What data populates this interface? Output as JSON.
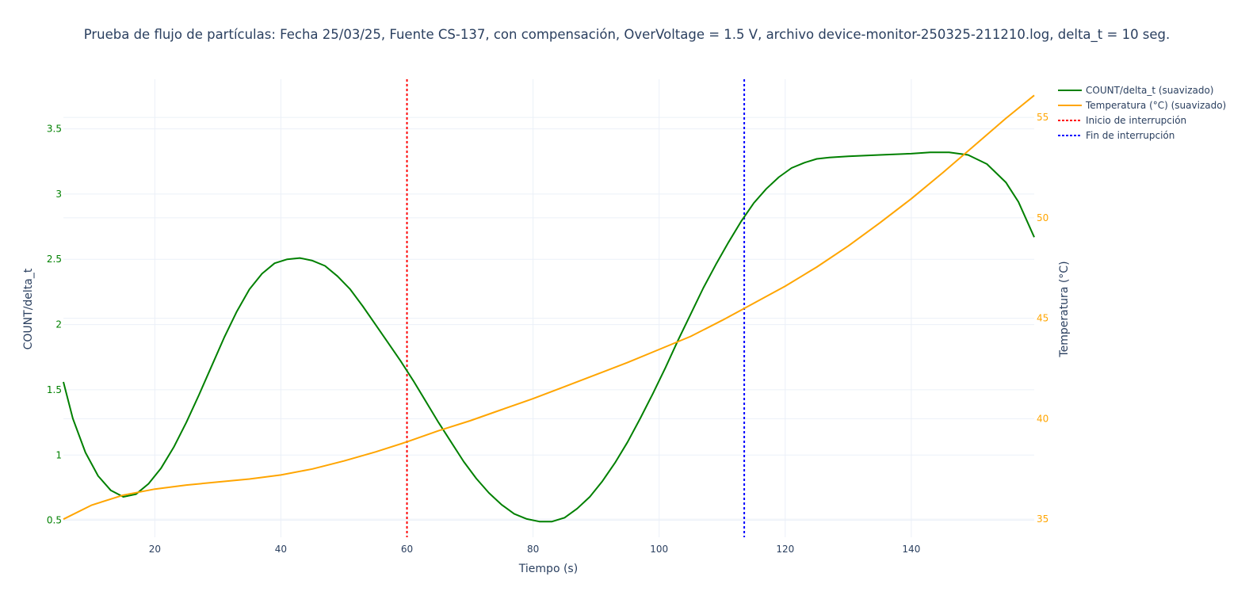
{
  "chart_data": {
    "type": "line",
    "title": "Prueba de flujo de partículas: Fecha 25/03/25, Fuente CS-137, con compensación, OverVoltage = 1.5 V, archivo device-monitor-250325-211210.log, delta_t = 10 seg.",
    "xlabel": "Tiempo (s)",
    "ylabel": "COUNT/delta_t",
    "y2label": "Temperatura (°C)",
    "xlim": [
      5.5,
      159.5
    ],
    "ylim": [
      0.37,
      3.88
    ],
    "y2lim": [
      34.1,
      56.9
    ],
    "x_ticks": [
      20,
      40,
      60,
      80,
      100,
      120,
      140
    ],
    "y_ticks": [
      0.5,
      1,
      1.5,
      2,
      2.5,
      3,
      3.5
    ],
    "y_tick_labels": [
      "0.5",
      "1",
      "1.5",
      "2",
      "2.5",
      "3",
      "3.5"
    ],
    "y2_ticks": [
      35,
      40,
      45,
      50,
      55
    ],
    "grid": true,
    "legend_position": "top-right",
    "colors": {
      "count": "#008000",
      "temp": "#FFA500",
      "start": "#FF0000",
      "end": "#0000FF",
      "grid": "#EBF0F8",
      "text": "#2a3f5f"
    },
    "series": [
      {
        "name": "COUNT/delta_t (suavizado)",
        "axis": "y",
        "x": [
          5.5,
          7,
          9,
          11,
          13,
          15,
          17,
          19,
          21,
          23,
          25,
          27,
          29,
          31,
          33,
          35,
          37,
          39,
          41,
          43,
          45,
          47,
          49,
          51,
          53,
          55,
          57,
          59,
          61,
          63,
          65,
          67,
          69,
          71,
          73,
          75,
          77,
          79,
          81,
          83,
          85,
          87,
          89,
          91,
          93,
          95,
          97,
          99,
          101,
          103,
          105,
          107,
          109,
          111,
          113,
          115,
          117,
          119,
          121,
          123,
          125,
          127,
          130,
          135,
          140,
          143,
          146,
          149,
          152,
          155,
          157,
          159.5
        ],
        "values": [
          1.56,
          1.28,
          1.02,
          0.84,
          0.73,
          0.68,
          0.7,
          0.78,
          0.9,
          1.06,
          1.25,
          1.46,
          1.68,
          1.9,
          2.1,
          2.27,
          2.39,
          2.47,
          2.5,
          2.51,
          2.49,
          2.45,
          2.37,
          2.27,
          2.14,
          2.0,
          1.86,
          1.72,
          1.57,
          1.41,
          1.25,
          1.1,
          0.95,
          0.82,
          0.71,
          0.62,
          0.55,
          0.51,
          0.49,
          0.49,
          0.52,
          0.59,
          0.68,
          0.8,
          0.94,
          1.1,
          1.28,
          1.47,
          1.67,
          1.88,
          2.08,
          2.28,
          2.46,
          2.63,
          2.79,
          2.93,
          3.04,
          3.13,
          3.2,
          3.24,
          3.27,
          3.28,
          3.29,
          3.3,
          3.31,
          3.32,
          3.32,
          3.3,
          3.23,
          3.09,
          2.94,
          2.67
        ]
      },
      {
        "name": "Temperatura (°C) (suavizado)",
        "axis": "y2",
        "x": [
          5.5,
          10,
          15,
          20,
          25,
          30,
          35,
          40,
          45,
          50,
          55,
          60,
          65,
          70,
          75,
          80,
          85,
          90,
          95,
          100,
          105,
          110,
          115,
          120,
          125,
          130,
          135,
          140,
          145,
          150,
          155,
          159.5
        ],
        "values": [
          35.0,
          35.7,
          36.2,
          36.5,
          36.7,
          36.85,
          37.0,
          37.2,
          37.5,
          37.9,
          38.35,
          38.85,
          39.4,
          39.9,
          40.45,
          41.0,
          41.6,
          42.2,
          42.8,
          43.45,
          44.1,
          44.9,
          45.75,
          46.6,
          47.55,
          48.6,
          49.75,
          50.95,
          52.25,
          53.6,
          54.95,
          56.1
        ]
      },
      {
        "name": "Inicio de interrupción",
        "type": "vline",
        "x": 60
      },
      {
        "name": "Fin de interrupción",
        "type": "vline",
        "x": 113.5
      }
    ]
  }
}
